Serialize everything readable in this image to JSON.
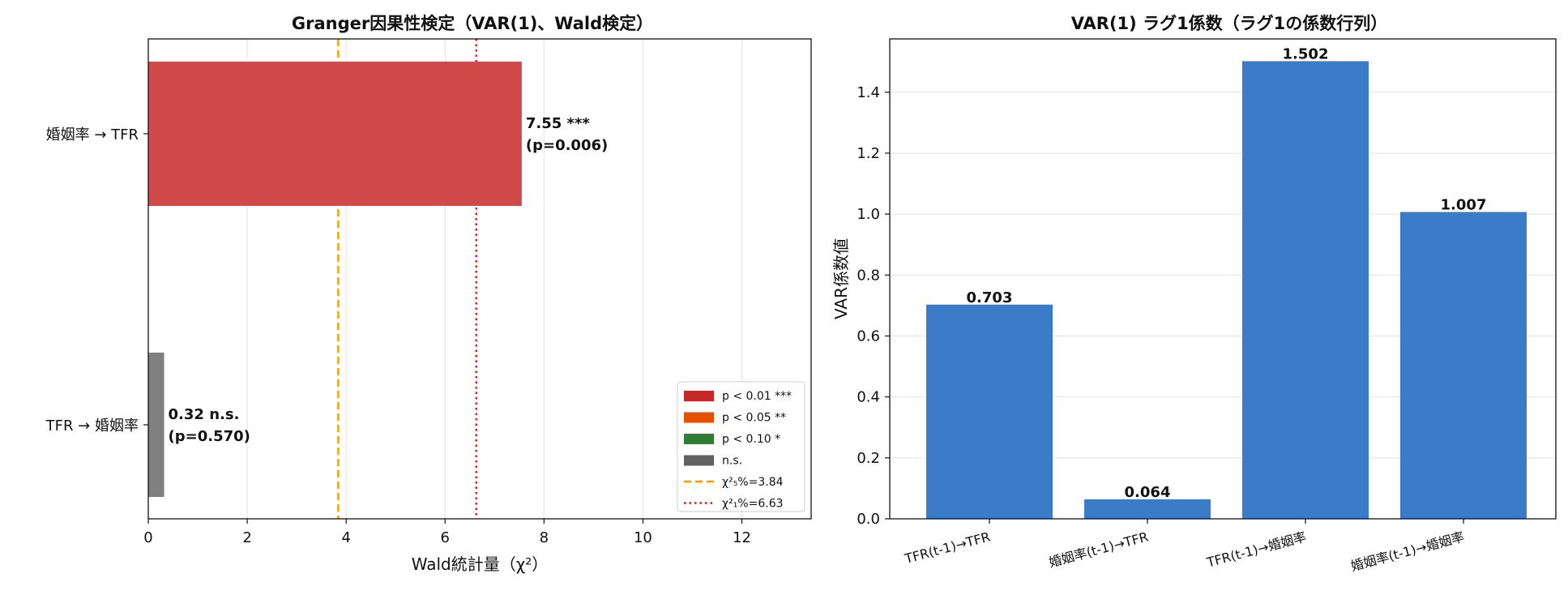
{
  "chart_data": [
    {
      "type": "bar",
      "orientation": "horizontal",
      "title": "Granger因果性検定（VAR(1)、Wald検定）",
      "xlabel": "Wald統計量（χ²）",
      "ylabel": "",
      "xlim": [
        0,
        13.4
      ],
      "xticks": [
        0,
        2,
        4,
        6,
        8,
        10,
        12
      ],
      "grid": "x",
      "categories": [
        "婚姻率 → TFR",
        "TFR → 婚姻率"
      ],
      "values": [
        7.55,
        0.32
      ],
      "bar_colors": [
        "#d04a4a",
        "#808080"
      ],
      "value_labels": [
        "7.55 ***",
        "0.32 n.s."
      ],
      "p_labels": [
        "(p=0.006)",
        "(p=0.570)"
      ],
      "reference_lines": [
        {
          "value": 3.84,
          "color": "#ff9900",
          "style": "dashed"
        },
        {
          "value": 6.63,
          "color": "#ee1111",
          "style": "dotted"
        }
      ],
      "legend_position": "lower-right",
      "legend": [
        {
          "label": "p < 0.01 ***",
          "color": "#c62828",
          "kind": "patch"
        },
        {
          "label": "p < 0.05 **",
          "color": "#e65100",
          "kind": "patch"
        },
        {
          "label": "p < 0.10 *",
          "color": "#2e7d32",
          "kind": "patch"
        },
        {
          "label": "n.s.",
          "color": "#616161",
          "kind": "patch"
        },
        {
          "label": "χ²₅%=3.84",
          "color": "#ff9900",
          "kind": "dashed"
        },
        {
          "label": "χ²₁%=6.63",
          "color": "#ee1111",
          "kind": "dotted"
        }
      ]
    },
    {
      "type": "bar",
      "orientation": "vertical",
      "title": "VAR(1) ラグ1係数（ラグ1の係数行列）",
      "xlabel": "",
      "ylabel": "VAR係数値",
      "ylim": [
        0,
        1.575
      ],
      "yticks": [
        "0.0",
        "0.2",
        "0.4",
        "0.6",
        "0.8",
        "1.0",
        "1.2",
        "1.4"
      ],
      "grid": "y",
      "categories": [
        "TFR(t-1)→TFR",
        "婚姻率(t-1)→TFR",
        "TFR(t-1)→婚姻率",
        "婚姻率(t-1)→婚姻率"
      ],
      "values": [
        0.703,
        0.064,
        1.502,
        1.007
      ],
      "value_labels": [
        "0.703",
        "0.064",
        "1.502",
        "1.007"
      ],
      "bar_color": "#3a7cc8"
    }
  ]
}
